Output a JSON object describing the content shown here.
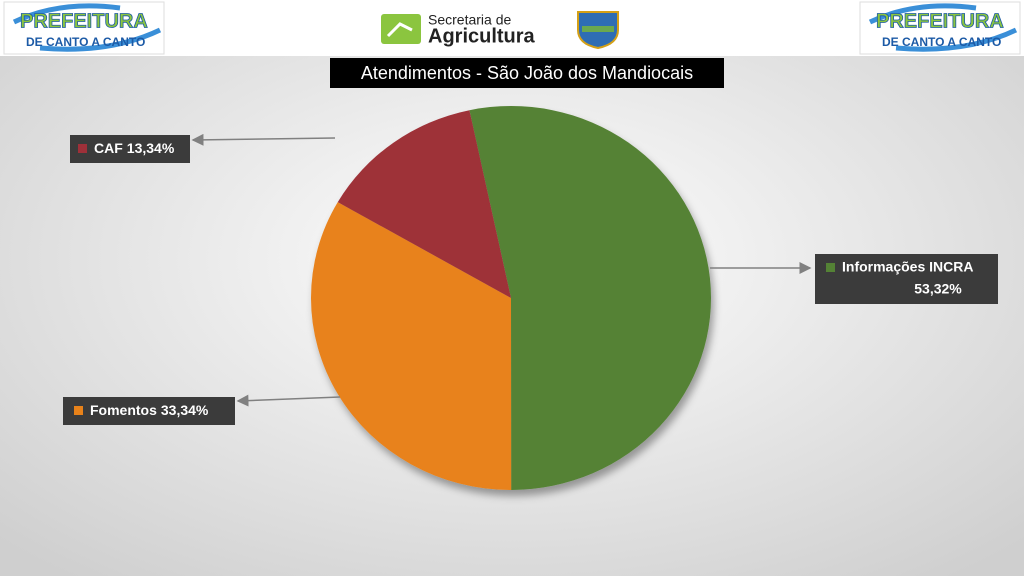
{
  "header": {
    "logo_brand": {
      "line1": "PREFEITURA",
      "line2": "DE CANTO A CANTO"
    },
    "secretaria": {
      "line1": "Secretaria de",
      "line2": "Agricultura"
    }
  },
  "chart_data": {
    "type": "pie",
    "title": "Atendimentos - São João dos Mandiocais",
    "categories": [
      "Informações INCRA",
      "Fomentos",
      "CAF"
    ],
    "values": [
      53.32,
      33.34,
      13.34
    ],
    "value_labels": [
      "53,32%",
      "33,34%",
      "13,34%"
    ],
    "colors": [
      "#548235",
      "#e8821a",
      "#9e3039"
    ]
  }
}
